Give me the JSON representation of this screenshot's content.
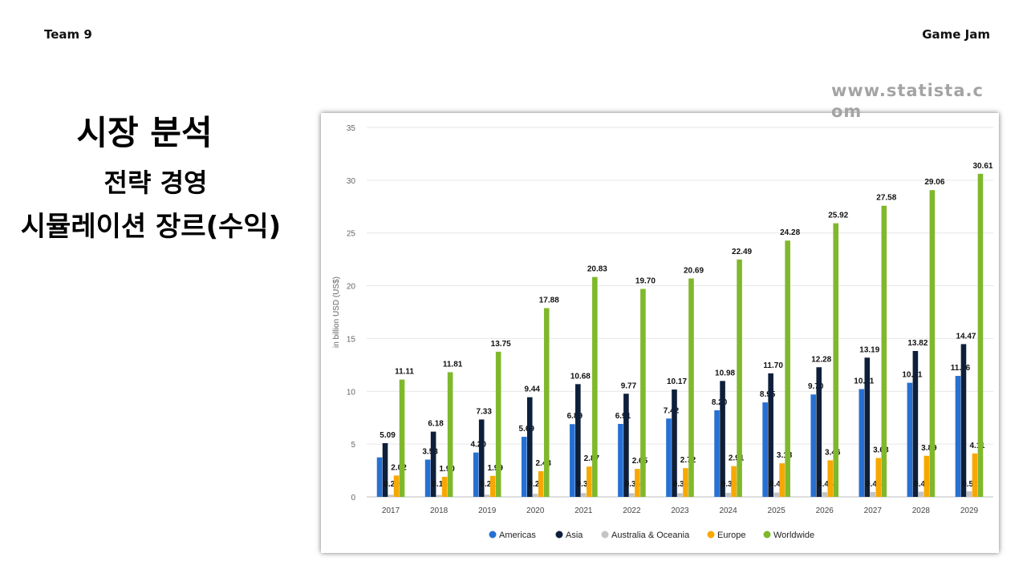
{
  "header": {
    "team": "Team 9",
    "event": "Game Jam"
  },
  "slide": {
    "title": "시장 분석",
    "subtitle": "전략 경영",
    "subtitle2": "시뮬레이션 장르(수익)"
  },
  "watermark": "www.statista.com",
  "colors": {
    "Americas": "#2770d3",
    "Asia": "#0e1f3a",
    "Australia & Oceania": "#c4c4c4",
    "Europe": "#f7a800",
    "Worldwide": "#80b82c"
  },
  "chart_data": {
    "type": "bar",
    "categories": [
      "2017",
      "2018",
      "2019",
      "2020",
      "2021",
      "2022",
      "2023",
      "2024",
      "2025",
      "2026",
      "2027",
      "2028",
      "2029"
    ],
    "series": [
      {
        "name": "Americas",
        "values": [
          3.74,
          3.53,
          4.2,
          5.69,
          6.89,
          6.91,
          7.42,
          8.2,
          8.95,
          9.7,
          10.21,
          10.81,
          11.46
        ],
        "labels": [
          "",
          "3.53",
          "4.20",
          "5.69",
          "6.89",
          "6.91",
          "7.42",
          "8.20",
          "8.95",
          "9.70",
          "10.21",
          "10.81",
          "11.46"
        ]
      },
      {
        "name": "Asia",
        "values": [
          5.09,
          6.18,
          7.33,
          9.44,
          10.68,
          9.77,
          10.17,
          10.98,
          11.7,
          12.28,
          13.19,
          13.82,
          14.47
        ],
        "labels": [
          "5.09",
          "6.18",
          "7.33",
          "9.44",
          "10.68",
          "9.77",
          "10.17",
          "10.98",
          "11.70",
          "12.28",
          "13.19",
          "13.82",
          "14.47"
        ]
      },
      {
        "name": "Australia & Oceania",
        "values": [
          0.2,
          0.18,
          0.21,
          0.29,
          0.36,
          0.35,
          0.35,
          0.38,
          0.41,
          0.44,
          0.46,
          0.49,
          0.52
        ],
        "labels": [
          "0.20",
          "0.18",
          "0.21",
          "0.29",
          "0.36",
          "0.35",
          "0.35",
          "0.38",
          "0.41",
          "0.44",
          "0.46",
          "0.49",
          "0.52"
        ]
      },
      {
        "name": "Europe",
        "values": [
          2.02,
          1.9,
          1.99,
          2.43,
          2.87,
          2.65,
          2.72,
          2.91,
          3.18,
          3.46,
          3.68,
          3.89,
          4.11
        ],
        "labels": [
          "2.02",
          "1.90",
          "1.99",
          "2.43",
          "2.87",
          "2.65",
          "2.72",
          "2.91",
          "3.18",
          "3.46",
          "3.68",
          "3.89",
          "4.11"
        ]
      },
      {
        "name": "Worldwide",
        "values": [
          11.11,
          11.81,
          13.75,
          17.88,
          20.83,
          19.7,
          20.69,
          22.49,
          24.28,
          25.92,
          27.58,
          29.06,
          30.61
        ],
        "labels": [
          "11.11",
          "11.81",
          "13.75",
          "17.88",
          "20.83",
          "19.70",
          "20.69",
          "22.49",
          "24.28",
          "25.92",
          "27.58",
          "29.06",
          "30.61"
        ]
      }
    ],
    "ylabel": "in billion USD (US$)",
    "ylim": [
      0,
      35
    ],
    "yticks": [
      "0",
      "5",
      "10",
      "15",
      "20",
      "25",
      "30",
      "35"
    ],
    "grid": true,
    "legend": "bottom"
  }
}
